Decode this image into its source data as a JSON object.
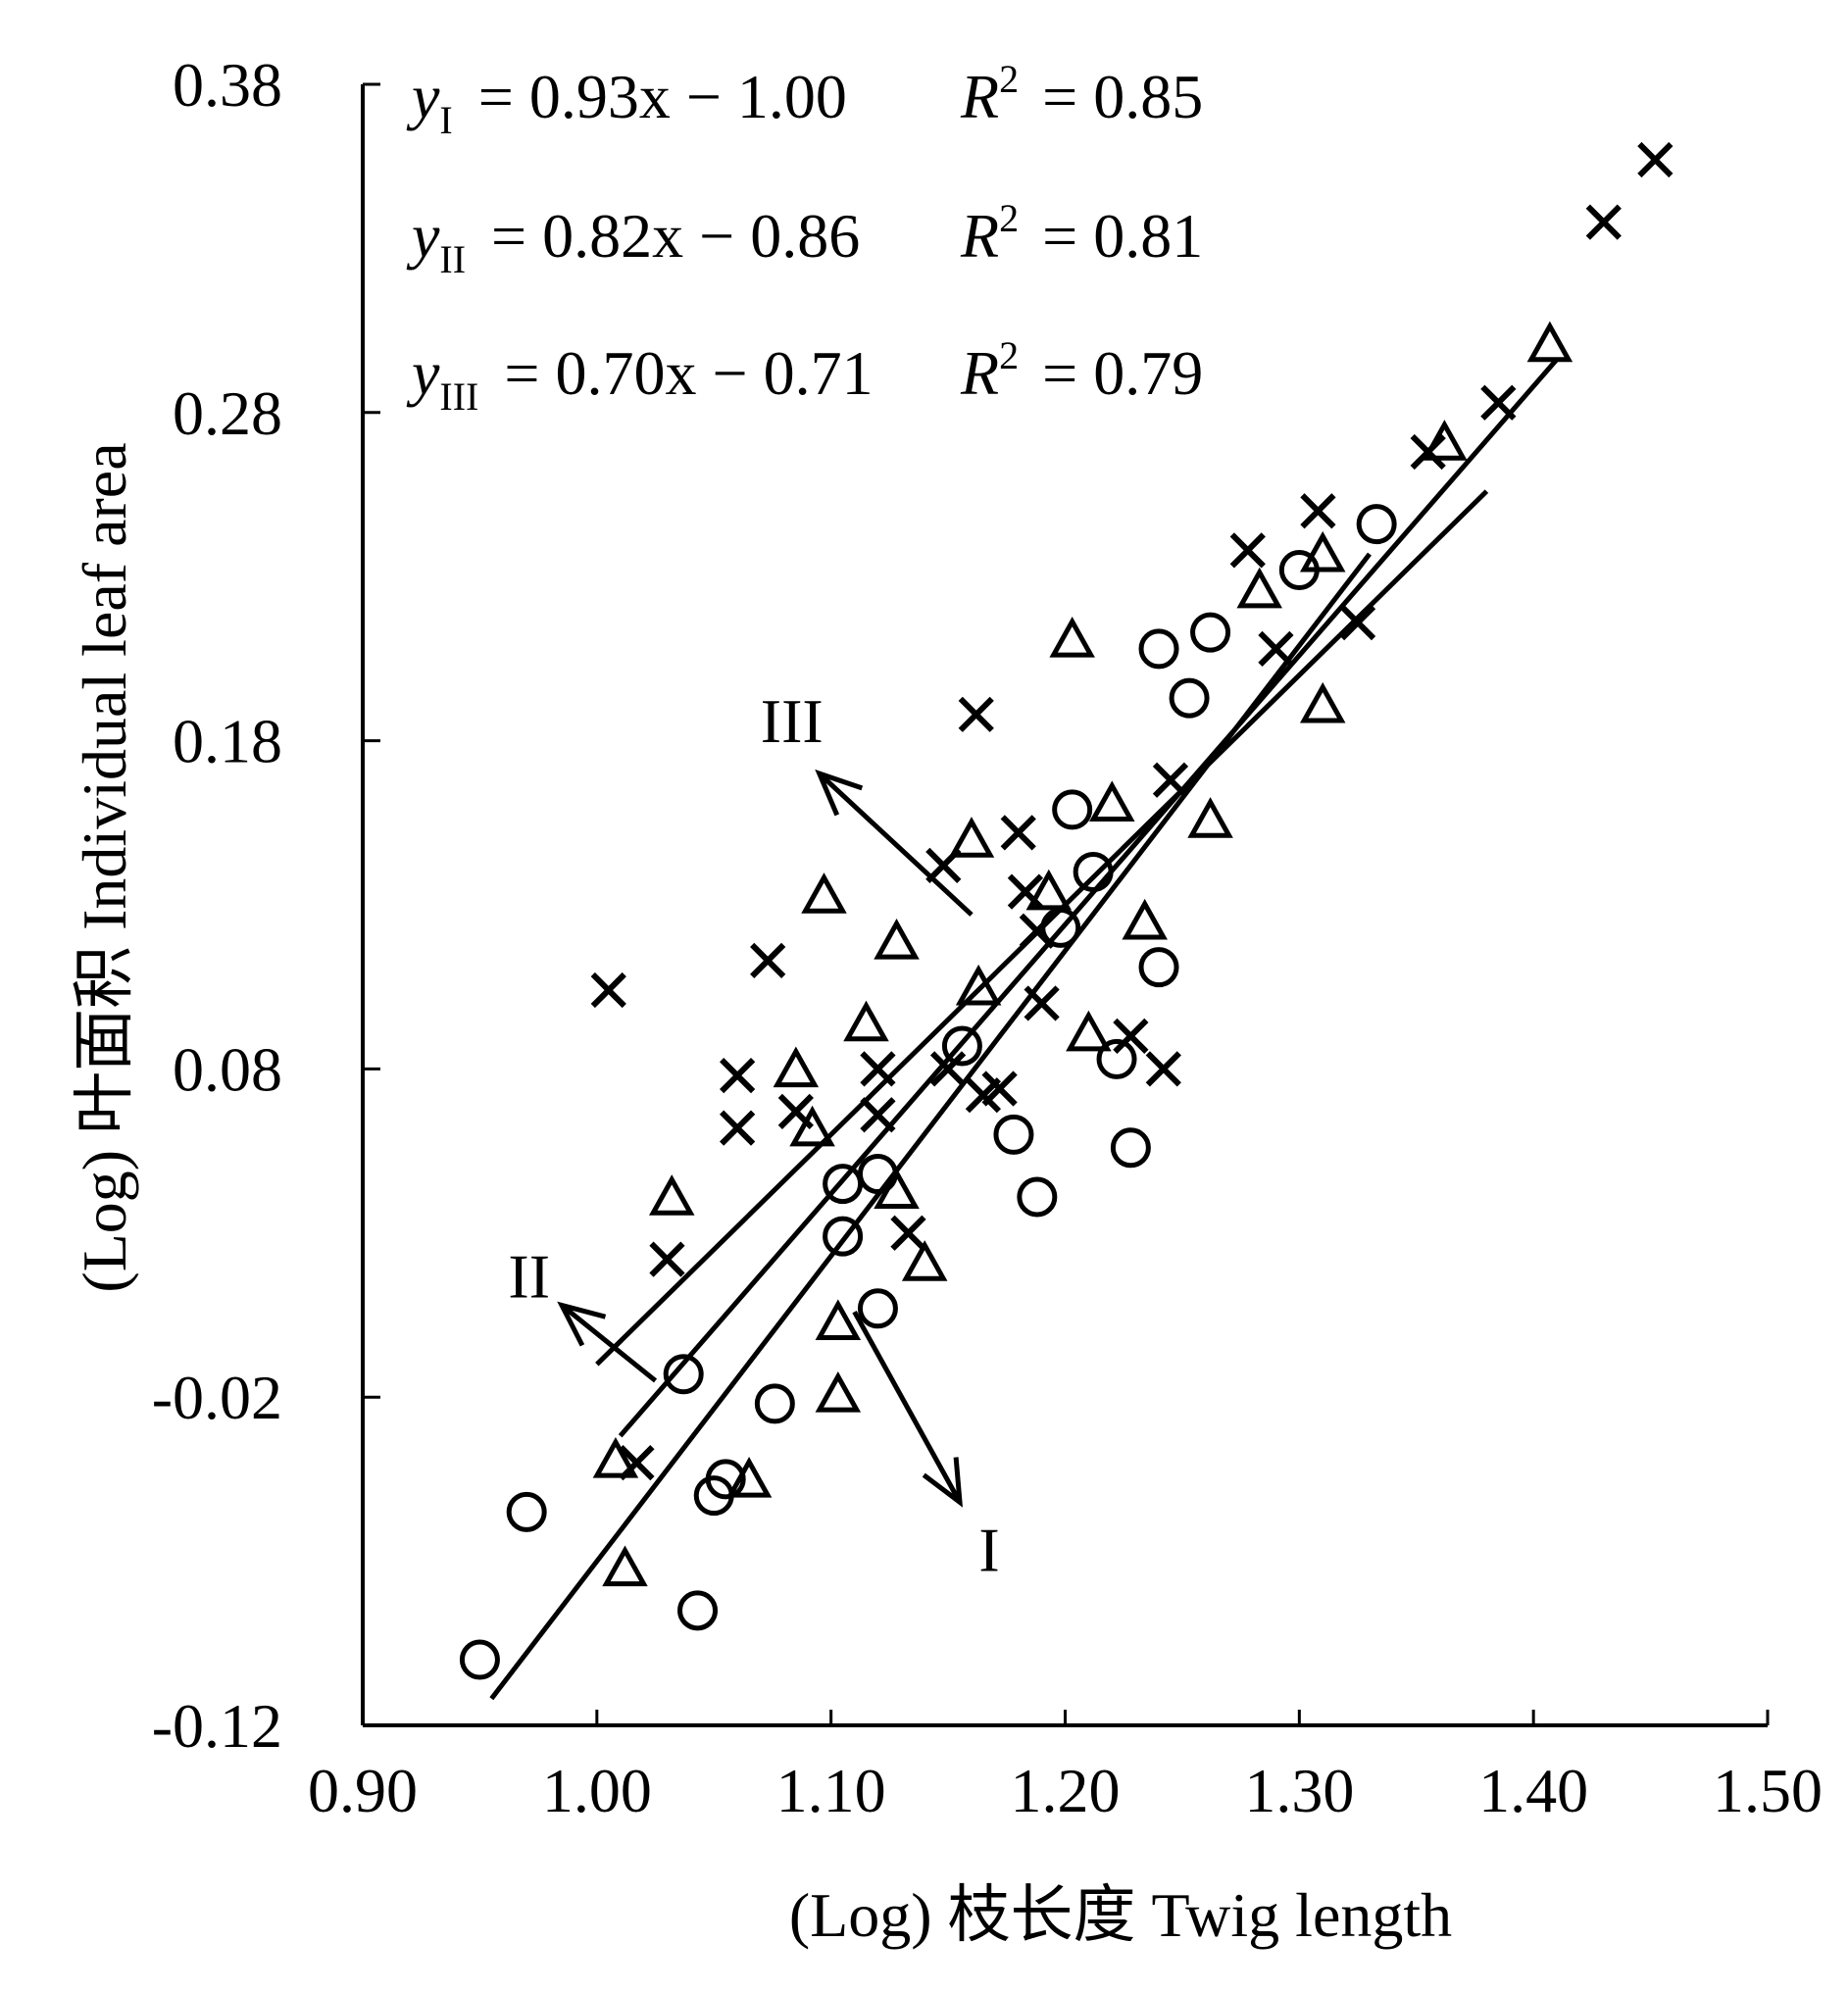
{
  "chart_data": {
    "type": "scatter",
    "title": "",
    "xlabel": "(Log) 枝长度 Twig length",
    "ylabel": "(Log) 叶面积 Individual leaf area",
    "xlim": [
      0.9,
      1.5
    ],
    "ylim": [
      -0.12,
      0.38
    ],
    "x_ticks": [
      "0.90",
      "1.00",
      "1.10",
      "1.20",
      "1.30",
      "1.40",
      "1.50"
    ],
    "y_ticks": [
      "-0.12",
      "-0.02",
      "0.08",
      "0.18",
      "0.28",
      "0.38"
    ],
    "grid": false,
    "equations": [
      {
        "sub": "I",
        "eq": "= 0.93x − 1.00",
        "r2": "= 0.85"
      },
      {
        "sub": "II",
        "eq": "= 0.82x − 0.86",
        "r2": "= 0.81"
      },
      {
        "sub": "III",
        "eq": "= 0.70x − 0.71",
        "r2": "= 0.79"
      }
    ],
    "series": [
      {
        "marker": "circle",
        "fit_label": "I",
        "fit": {
          "slope": 0.93,
          "intercept": -1.0,
          "x_range": [
            0.955,
            1.33
          ]
        },
        "points": [
          [
            0.95,
            -0.1
          ],
          [
            0.97,
            -0.055
          ],
          [
            1.037,
            -0.013
          ],
          [
            1.043,
            -0.085
          ],
          [
            1.05,
            -0.05
          ],
          [
            1.055,
            -0.045
          ],
          [
            1.076,
            -0.022
          ],
          [
            1.105,
            0.045
          ],
          [
            1.105,
            0.029
          ],
          [
            1.12,
            0.048
          ],
          [
            1.12,
            0.007
          ],
          [
            1.156,
            0.087
          ],
          [
            1.178,
            0.06
          ],
          [
            1.188,
            0.041
          ],
          [
            1.198,
            0.123
          ],
          [
            1.203,
            0.159
          ],
          [
            1.212,
            0.14
          ],
          [
            1.222,
            0.083
          ],
          [
            1.228,
            0.056
          ],
          [
            1.24,
            0.208
          ],
          [
            1.24,
            0.111
          ],
          [
            1.253,
            0.193
          ],
          [
            1.262,
            0.213
          ],
          [
            1.3,
            0.232
          ],
          [
            1.333,
            0.246
          ]
        ]
      },
      {
        "marker": "triangle",
        "fit_label": "II",
        "fit": {
          "slope": 0.82,
          "intercept": -0.86,
          "x_range": [
            1.01,
            1.41
          ]
        },
        "points": [
          [
            1.008,
            -0.04
          ],
          [
            1.012,
            -0.073
          ],
          [
            1.032,
            0.04
          ],
          [
            1.065,
            -0.046
          ],
          [
            1.085,
            0.079
          ],
          [
            1.092,
            0.061
          ],
          [
            1.097,
            0.132
          ],
          [
            1.103,
            0.002
          ],
          [
            1.103,
            -0.02
          ],
          [
            1.115,
            0.093
          ],
          [
            1.128,
            0.042
          ],
          [
            1.128,
            0.118
          ],
          [
            1.14,
            0.02
          ],
          [
            1.16,
            0.149
          ],
          [
            1.163,
            0.104
          ],
          [
            1.193,
            0.133
          ],
          [
            1.203,
            0.21
          ],
          [
            1.21,
            0.09
          ],
          [
            1.22,
            0.16
          ],
          [
            1.234,
            0.124
          ],
          [
            1.262,
            0.155
          ],
          [
            1.283,
            0.225
          ],
          [
            1.31,
            0.236
          ],
          [
            1.31,
            0.19
          ],
          [
            1.362,
            0.27
          ],
          [
            1.407,
            0.3
          ]
        ]
      },
      {
        "marker": "cross",
        "fit_label": "III",
        "fit": {
          "slope": 0.7,
          "intercept": -0.71,
          "x_range": [
            1.0,
            1.38
          ]
        },
        "points": [
          [
            1.005,
            0.104
          ],
          [
            1.017,
            -0.04
          ],
          [
            1.03,
            0.022
          ],
          [
            1.06,
            0.062
          ],
          [
            1.06,
            0.078
          ],
          [
            1.073,
            0.113
          ],
          [
            1.085,
            0.067
          ],
          [
            1.12,
            0.066
          ],
          [
            1.12,
            0.08
          ],
          [
            1.133,
            0.03
          ],
          [
            1.148,
            0.142
          ],
          [
            1.15,
            0.08
          ],
          [
            1.162,
            0.188
          ],
          [
            1.165,
            0.072
          ],
          [
            1.172,
            0.074
          ],
          [
            1.18,
            0.152
          ],
          [
            1.183,
            0.134
          ],
          [
            1.188,
            0.122
          ],
          [
            1.19,
            0.1
          ],
          [
            1.228,
            0.09
          ],
          [
            1.242,
            0.08
          ],
          [
            1.245,
            0.168
          ],
          [
            1.278,
            0.238
          ],
          [
            1.29,
            0.208
          ],
          [
            1.308,
            0.25
          ],
          [
            1.325,
            0.216
          ],
          [
            1.355,
            0.268
          ],
          [
            1.385,
            0.283
          ],
          [
            1.43,
            0.338
          ],
          [
            1.452,
            0.357
          ]
        ]
      }
    ],
    "arrows": [
      {
        "label": "III",
        "tip": [
          1.095,
          0.17
        ],
        "tail": [
          1.16,
          0.127
        ]
      },
      {
        "label": "II",
        "tip": [
          0.985,
          0.008
        ],
        "tail": [
          1.025,
          -0.015
        ]
      },
      {
        "label": "I",
        "tip": [
          1.155,
          -0.052
        ],
        "tail": [
          1.11,
          0.006
        ]
      }
    ]
  }
}
